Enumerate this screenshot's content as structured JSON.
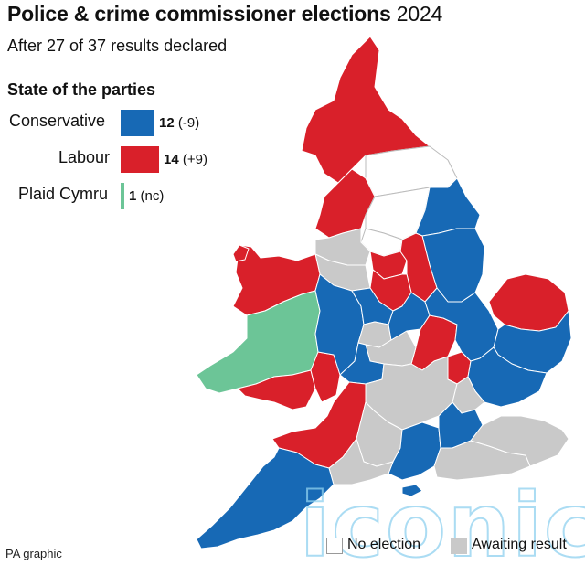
{
  "header": {
    "title": "Police & crime commissioner elections",
    "year": "2024",
    "subtitle": "After 27 of 37 results declared"
  },
  "legend": {
    "title": "State of the parties",
    "parties": [
      {
        "name": "Conservative",
        "seats": "12",
        "change": "(-9)",
        "color": "#1769b5"
      },
      {
        "name": "Labour",
        "seats": "14",
        "change": "(+9)",
        "color": "#d9202a"
      },
      {
        "name": "Plaid Cymru",
        "seats": "1",
        "change": "(nc)",
        "color": "#6cc597"
      }
    ]
  },
  "key": {
    "no_election": "No election",
    "awaiting": "Awaiting result",
    "no_election_color": "#ffffff",
    "awaiting_color": "#c9c9c9"
  },
  "credit": "PA graphic",
  "watermark": "iconic",
  "map_regions": [
    {
      "name": "Northumbria & Cumbria area",
      "result": "Labour"
    },
    {
      "name": "Cleveland & Durham area",
      "result": "No election"
    },
    {
      "name": "Lancashire",
      "result": "Labour"
    },
    {
      "name": "North Yorkshire",
      "result": "No election"
    },
    {
      "name": "Humberside",
      "result": "Conservative"
    },
    {
      "name": "West Yorkshire",
      "result": "No election"
    },
    {
      "name": "South Yorkshire",
      "result": "Labour"
    },
    {
      "name": "Merseyside & Greater Manchester",
      "result": "Awaiting result"
    },
    {
      "name": "Cheshire",
      "result": "Awaiting result"
    },
    {
      "name": "Derbyshire",
      "result": "Labour"
    },
    {
      "name": "Nottinghamshire",
      "result": "Labour"
    },
    {
      "name": "Lincolnshire",
      "result": "Conservative"
    },
    {
      "name": "Norfolk",
      "result": "Labour"
    },
    {
      "name": "Suffolk",
      "result": "Conservative"
    },
    {
      "name": "North Wales",
      "result": "Labour"
    },
    {
      "name": "Dyfed-Powys",
      "result": "Plaid Cymru"
    },
    {
      "name": "South Wales",
      "result": "Labour"
    },
    {
      "name": "Gwent",
      "result": "Labour"
    },
    {
      "name": "West Mercia",
      "result": "Conservative"
    },
    {
      "name": "Staffordshire",
      "result": "Conservative"
    },
    {
      "name": "West Midlands",
      "result": "Awaiting result"
    },
    {
      "name": "Leicestershire",
      "result": "Labour"
    },
    {
      "name": "Northamptonshire",
      "result": "Conservative"
    },
    {
      "name": "Bedfordshire",
      "result": "Labour"
    },
    {
      "name": "Cambridgeshire",
      "result": "Conservative"
    },
    {
      "name": "Essex",
      "result": "Conservative"
    },
    {
      "name": "Warwickshire",
      "result": "Awaiting result"
    },
    {
      "name": "Gloucestershire",
      "result": "Conservative"
    },
    {
      "name": "Thames Valley",
      "result": "Awaiting result"
    },
    {
      "name": "Hertfordshire",
      "result": "Awaiting result"
    },
    {
      "name": "Avon & Somerset",
      "result": "Labour"
    },
    {
      "name": "Wiltshire",
      "result": "Awaiting result"
    },
    {
      "name": "Hampshire",
      "result": "Conservative"
    },
    {
      "name": "Surrey",
      "result": "Conservative"
    },
    {
      "name": "Sussex",
      "result": "Awaiting result"
    },
    {
      "name": "Kent",
      "result": "Awaiting result"
    },
    {
      "name": "Devon & Cornwall",
      "result": "Conservative"
    },
    {
      "name": "Dorset",
      "result": "Awaiting result"
    }
  ]
}
